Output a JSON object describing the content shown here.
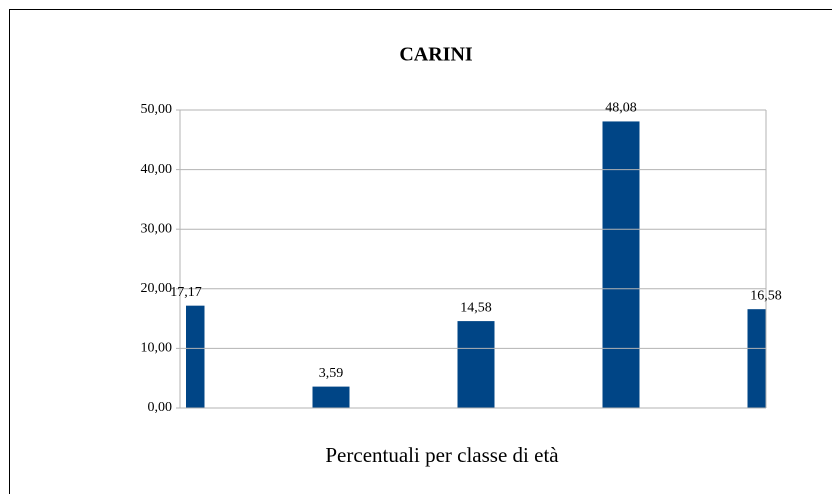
{
  "chart_data": {
    "type": "bar",
    "title": "CARINI",
    "x_label": "Percentuali per classe di età",
    "categories": [
      null,
      null,
      null,
      null,
      null
    ],
    "values": [
      17.17,
      3.59,
      14.58,
      48.08,
      16.58
    ],
    "value_labels": [
      "17,17",
      "3,59",
      "14,58",
      "48,08",
      "16,58"
    ],
    "color": "#004586",
    "ylim": [
      0,
      50
    ],
    "yticks": [
      {
        "value": 0,
        "label": "0,00"
      },
      {
        "value": 10,
        "label": "10,00"
      },
      {
        "value": 20,
        "label": "20,00"
      },
      {
        "value": 30,
        "label": "30,00"
      },
      {
        "value": 40,
        "label": "40,00"
      },
      {
        "value": 50,
        "label": "50,00"
      }
    ],
    "grid": true
  }
}
